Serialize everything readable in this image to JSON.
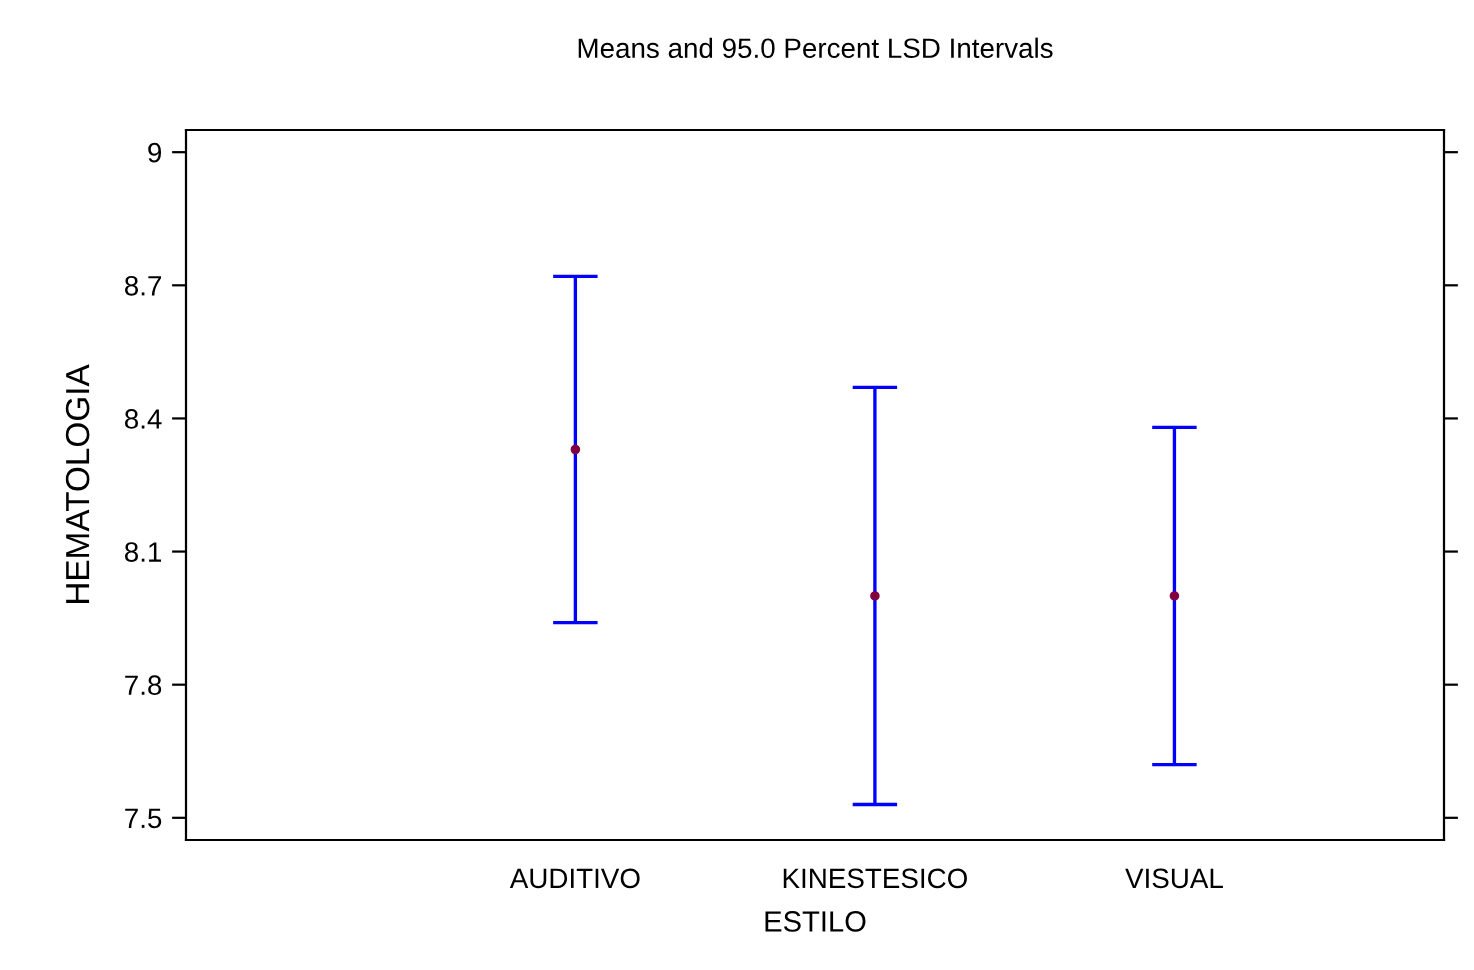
{
  "chart_data": {
    "type": "scatter",
    "title": "Means and 95.0 Percent LSD Intervals",
    "xlabel": "ESTILO",
    "ylabel": "HEMATOLOGIA",
    "categories": [
      "AUDITIVO",
      "KINESTESICO",
      "VISUAL"
    ],
    "series": [
      {
        "color": "#0000ff",
        "colors": [
          "#800040",
          "#800040",
          "#800040"
        ],
        "values": [
          8.33,
          8.0,
          8.0
        ],
        "errors": [
          0.39,
          0.47,
          0.38
        ]
      }
    ],
    "ylim": [
      7.45,
      9.05
    ],
    "yticks": [
      7.5,
      7.8,
      8.1,
      8.4,
      8.7,
      9
    ],
    "grid": false,
    "marker": "circle"
  }
}
